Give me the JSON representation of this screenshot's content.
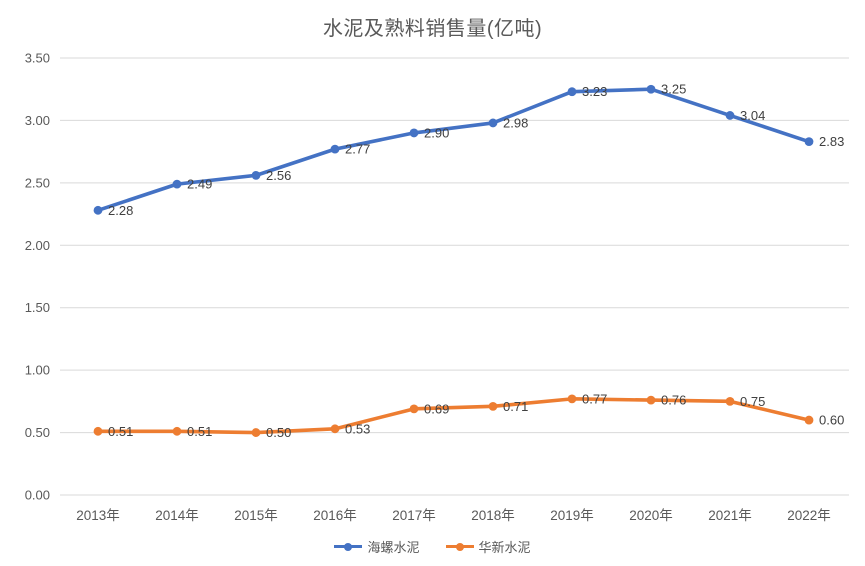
{
  "chart_data": {
    "type": "line",
    "title": "水泥及熟料销售量(亿吨)",
    "categories": [
      "2013年",
      "2014年",
      "2015年",
      "2016年",
      "2017年",
      "2018年",
      "2019年",
      "2020年",
      "2021年",
      "2022年"
    ],
    "series": [
      {
        "name": "海螺水泥",
        "color": "#4472C4",
        "values": [
          2.28,
          2.49,
          2.56,
          2.77,
          2.9,
          2.98,
          3.23,
          3.25,
          3.04,
          2.83
        ]
      },
      {
        "name": "华新水泥",
        "color": "#ED7D31",
        "values": [
          0.51,
          0.51,
          0.5,
          0.53,
          0.69,
          0.71,
          0.77,
          0.76,
          0.75,
          0.6
        ]
      }
    ],
    "ylim": [
      0,
      3.5
    ],
    "ytick_step": 0.5,
    "ytick_labels": [
      "0.00",
      "0.50",
      "1.00",
      "1.50",
      "2.00",
      "2.50",
      "3.00",
      "3.50"
    ],
    "grid": true,
    "data_labels": "right-of-point",
    "legend_position": "bottom",
    "colors": {
      "gridline": "#D9D9D9",
      "axis_text": "#595959",
      "data_label_text": "#404040",
      "title_text": "#595959",
      "background": "#FFFFFF"
    }
  }
}
